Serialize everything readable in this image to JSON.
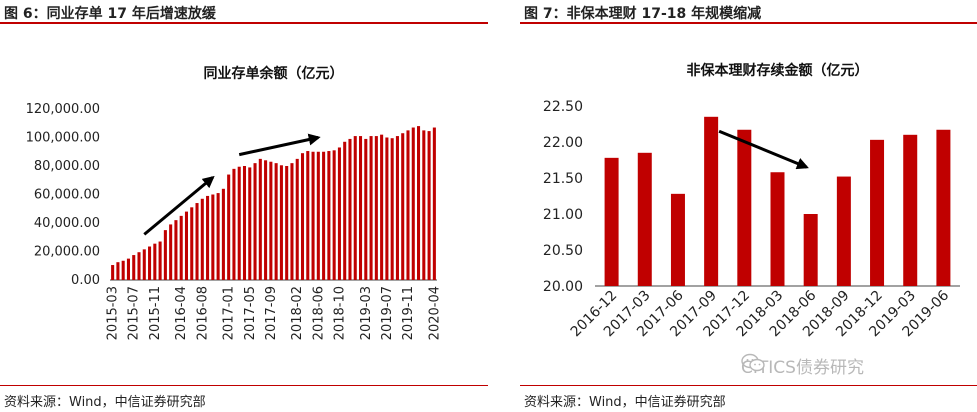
{
  "fig6": {
    "label": "图 6：同业存单 17 年后增速放缓",
    "source": "资料来源：Wind，中信证券研究部"
  },
  "fig7": {
    "label": "图 7：非保本理财 17-18 年规模缩减",
    "source": "资料来源：Wind，中信证券研究部"
  },
  "watermark": {
    "text": "CITICS债券研究",
    "icon": "wechat-icon"
  },
  "colors": {
    "bar": "#c00000",
    "rule": "#c00000",
    "arrow": "#000000"
  },
  "chart_data": [
    {
      "type": "bar",
      "title": "同业存单余额（亿元）",
      "ylim": [
        0,
        120000
      ],
      "yticks": [
        "0.00",
        "20,000.00",
        "40,000.00",
        "60,000.00",
        "80,000.00",
        "100,000.00",
        "120,000.00"
      ],
      "xticks": [
        "2015-03",
        "2015-07",
        "2015-11",
        "2016-04",
        "2016-08",
        "2017-01",
        "2017-05",
        "2017-09",
        "2018-02",
        "2018-06",
        "2018-10",
        "2019-03",
        "2019-07",
        "2019-11",
        "2020-04"
      ],
      "x": [
        "2015-03",
        "2015-04",
        "2015-05",
        "2015-06",
        "2015-07",
        "2015-08",
        "2015-09",
        "2015-10",
        "2015-11",
        "2015-12",
        "2016-01",
        "2016-02",
        "2016-03",
        "2016-04",
        "2016-05",
        "2016-06",
        "2016-07",
        "2016-08",
        "2016-09",
        "2016-10",
        "2016-11",
        "2016-12",
        "2017-01",
        "2017-02",
        "2017-03",
        "2017-04",
        "2017-05",
        "2017-06",
        "2017-07",
        "2017-08",
        "2017-09",
        "2017-10",
        "2017-11",
        "2017-12",
        "2018-01",
        "2018-02",
        "2018-03",
        "2018-04",
        "2018-05",
        "2018-06",
        "2018-07",
        "2018-08",
        "2018-09",
        "2018-10",
        "2018-11",
        "2018-12",
        "2019-01",
        "2019-02",
        "2019-03",
        "2019-04",
        "2019-05",
        "2019-06",
        "2019-07",
        "2019-08",
        "2019-09",
        "2019-10",
        "2019-11",
        "2019-12",
        "2020-01",
        "2020-02",
        "2020-03",
        "2020-04"
      ],
      "values": [
        10500,
        12500,
        13500,
        15000,
        17500,
        19500,
        21500,
        23500,
        25500,
        27000,
        35000,
        39000,
        42000,
        45000,
        48000,
        51000,
        54000,
        57000,
        59000,
        60000,
        61000,
        64000,
        74000,
        78000,
        79500,
        80000,
        79000,
        82000,
        85000,
        84000,
        83000,
        82000,
        80500,
        80000,
        82000,
        85000,
        89000,
        90500,
        90000,
        90000,
        90000,
        90500,
        91000,
        93000,
        97000,
        99000,
        101000,
        101000,
        99000,
        101000,
        101000,
        102000,
        100000,
        99500,
        101000,
        103000,
        105000,
        107000,
        108000,
        105000,
        104500,
        107000
      ],
      "annotations": [
        {
          "type": "arrow",
          "from": [
            "2015-09",
            32000
          ],
          "to": [
            "2016-10",
            72000
          ]
        },
        {
          "type": "arrow",
          "from": [
            "2017-03",
            88000
          ],
          "to": [
            "2018-06",
            100000
          ]
        }
      ]
    },
    {
      "type": "bar",
      "title": "非保本理财存续金额（亿元）",
      "ylim": [
        20.0,
        22.5
      ],
      "yticks": [
        "20.00",
        "20.50",
        "21.00",
        "21.50",
        "22.00",
        "22.50"
      ],
      "categories": [
        "2016-12",
        "2017-03",
        "2017-06",
        "2017-09",
        "2017-12",
        "2018-03",
        "2018-06",
        "2018-09",
        "2018-12",
        "2019-03",
        "2019-06"
      ],
      "values": [
        21.78,
        21.85,
        21.28,
        22.35,
        22.17,
        21.58,
        21.0,
        21.52,
        22.03,
        22.1,
        22.17
      ],
      "annotations": [
        {
          "type": "arrow",
          "from": [
            "2017-09",
            22.15
          ],
          "to": [
            "2018-06",
            21.65
          ]
        }
      ]
    }
  ]
}
